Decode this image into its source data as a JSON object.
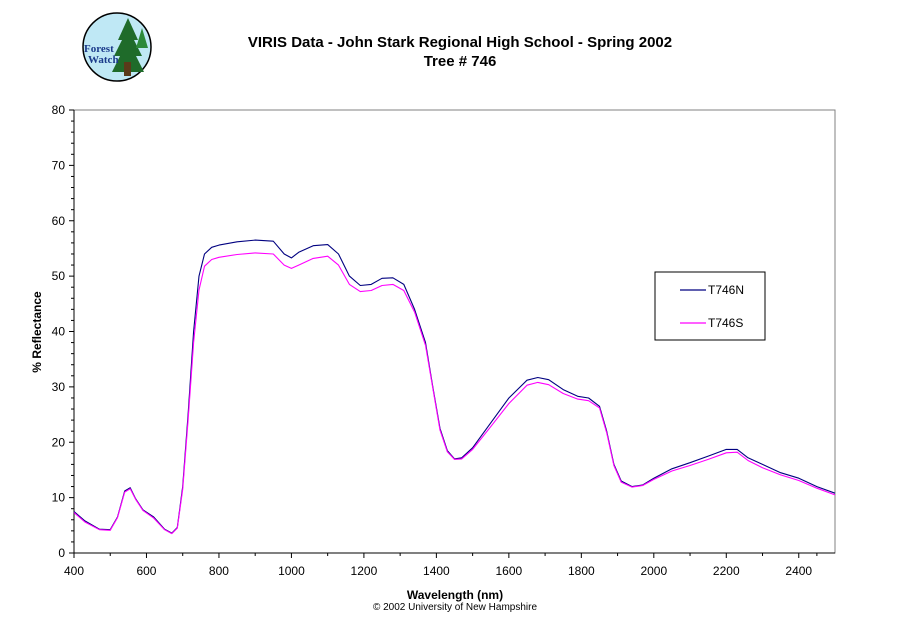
{
  "chart_data": {
    "type": "line",
    "title": "VIRIS Data - John Stark Regional High School - Spring 2002",
    "subtitle": "Tree # 746",
    "xlabel": "Wavelength (nm)",
    "ylabel": "% Reflectance",
    "xlim": [
      400,
      2500
    ],
    "ylim": [
      0,
      80
    ],
    "xticks": [
      400,
      600,
      800,
      1000,
      1200,
      1400,
      1600,
      1800,
      2000,
      2200,
      2400
    ],
    "yticks": [
      0,
      10,
      20,
      30,
      40,
      50,
      60,
      70,
      80
    ],
    "grid": false,
    "legend_position": "right",
    "series": [
      {
        "name": "T746N",
        "color": "#000080",
        "points": [
          [
            400,
            7.5
          ],
          [
            430,
            5.8
          ],
          [
            470,
            4.3
          ],
          [
            500,
            4.2
          ],
          [
            520,
            6.5
          ],
          [
            540,
            11.2
          ],
          [
            555,
            11.8
          ],
          [
            570,
            9.8
          ],
          [
            590,
            7.8
          ],
          [
            620,
            6.5
          ],
          [
            650,
            4.3
          ],
          [
            670,
            3.6
          ],
          [
            685,
            4.6
          ],
          [
            700,
            12.0
          ],
          [
            715,
            25.0
          ],
          [
            730,
            40.0
          ],
          [
            745,
            50.0
          ],
          [
            760,
            54.0
          ],
          [
            780,
            55.2
          ],
          [
            800,
            55.6
          ],
          [
            850,
            56.2
          ],
          [
            900,
            56.5
          ],
          [
            950,
            56.3
          ],
          [
            980,
            54.0
          ],
          [
            1000,
            53.3
          ],
          [
            1020,
            54.3
          ],
          [
            1060,
            55.5
          ],
          [
            1100,
            55.7
          ],
          [
            1130,
            54.0
          ],
          [
            1160,
            50.0
          ],
          [
            1190,
            48.3
          ],
          [
            1220,
            48.5
          ],
          [
            1250,
            49.6
          ],
          [
            1280,
            49.7
          ],
          [
            1310,
            48.5
          ],
          [
            1340,
            44.0
          ],
          [
            1370,
            38.0
          ],
          [
            1390,
            30.0
          ],
          [
            1410,
            22.5
          ],
          [
            1430,
            18.5
          ],
          [
            1450,
            17.0
          ],
          [
            1470,
            17.2
          ],
          [
            1500,
            19.0
          ],
          [
            1550,
            23.5
          ],
          [
            1600,
            28.0
          ],
          [
            1650,
            31.2
          ],
          [
            1680,
            31.7
          ],
          [
            1710,
            31.3
          ],
          [
            1750,
            29.5
          ],
          [
            1790,
            28.3
          ],
          [
            1820,
            28.0
          ],
          [
            1850,
            26.5
          ],
          [
            1870,
            22.0
          ],
          [
            1890,
            16.0
          ],
          [
            1910,
            13.0
          ],
          [
            1940,
            12.0
          ],
          [
            1970,
            12.3
          ],
          [
            2000,
            13.5
          ],
          [
            2050,
            15.2
          ],
          [
            2100,
            16.3
          ],
          [
            2150,
            17.5
          ],
          [
            2200,
            18.7
          ],
          [
            2230,
            18.7
          ],
          [
            2260,
            17.2
          ],
          [
            2300,
            16.0
          ],
          [
            2350,
            14.5
          ],
          [
            2400,
            13.5
          ],
          [
            2450,
            12.0
          ],
          [
            2500,
            10.8
          ]
        ]
      },
      {
        "name": "T746S",
        "color": "#ff00ff",
        "points": [
          [
            400,
            7.3
          ],
          [
            430,
            5.6
          ],
          [
            470,
            4.2
          ],
          [
            500,
            4.1
          ],
          [
            520,
            6.4
          ],
          [
            540,
            11.0
          ],
          [
            555,
            11.6
          ],
          [
            570,
            9.7
          ],
          [
            590,
            7.7
          ],
          [
            620,
            6.3
          ],
          [
            650,
            4.2
          ],
          [
            670,
            3.5
          ],
          [
            685,
            4.5
          ],
          [
            700,
            11.5
          ],
          [
            715,
            24.0
          ],
          [
            730,
            38.0
          ],
          [
            745,
            47.5
          ],
          [
            760,
            51.8
          ],
          [
            780,
            53.0
          ],
          [
            800,
            53.4
          ],
          [
            850,
            53.9
          ],
          [
            900,
            54.2
          ],
          [
            950,
            54.0
          ],
          [
            980,
            52.0
          ],
          [
            1000,
            51.4
          ],
          [
            1020,
            52.0
          ],
          [
            1060,
            53.2
          ],
          [
            1100,
            53.6
          ],
          [
            1130,
            52.0
          ],
          [
            1160,
            48.5
          ],
          [
            1190,
            47.2
          ],
          [
            1220,
            47.4
          ],
          [
            1250,
            48.3
          ],
          [
            1280,
            48.5
          ],
          [
            1310,
            47.4
          ],
          [
            1340,
            43.5
          ],
          [
            1370,
            37.5
          ],
          [
            1390,
            29.8
          ],
          [
            1410,
            22.2
          ],
          [
            1430,
            18.3
          ],
          [
            1450,
            16.9
          ],
          [
            1470,
            17.0
          ],
          [
            1500,
            18.7
          ],
          [
            1550,
            22.8
          ],
          [
            1600,
            27.0
          ],
          [
            1650,
            30.3
          ],
          [
            1680,
            30.8
          ],
          [
            1710,
            30.4
          ],
          [
            1750,
            28.8
          ],
          [
            1790,
            27.8
          ],
          [
            1820,
            27.5
          ],
          [
            1850,
            26.2
          ],
          [
            1870,
            21.7
          ],
          [
            1890,
            15.8
          ],
          [
            1910,
            12.8
          ],
          [
            1940,
            11.9
          ],
          [
            1970,
            12.2
          ],
          [
            2000,
            13.3
          ],
          [
            2050,
            14.8
          ],
          [
            2100,
            15.8
          ],
          [
            2150,
            16.9
          ],
          [
            2200,
            18.1
          ],
          [
            2230,
            18.2
          ],
          [
            2260,
            16.7
          ],
          [
            2300,
            15.4
          ],
          [
            2350,
            14.1
          ],
          [
            2400,
            13.1
          ],
          [
            2450,
            11.7
          ],
          [
            2500,
            10.5
          ]
        ]
      }
    ]
  },
  "logo": {
    "line1": "Forest",
    "line2": "Watch"
  },
  "footer": {
    "copyright": "© 2002 University of New Hampshire"
  }
}
